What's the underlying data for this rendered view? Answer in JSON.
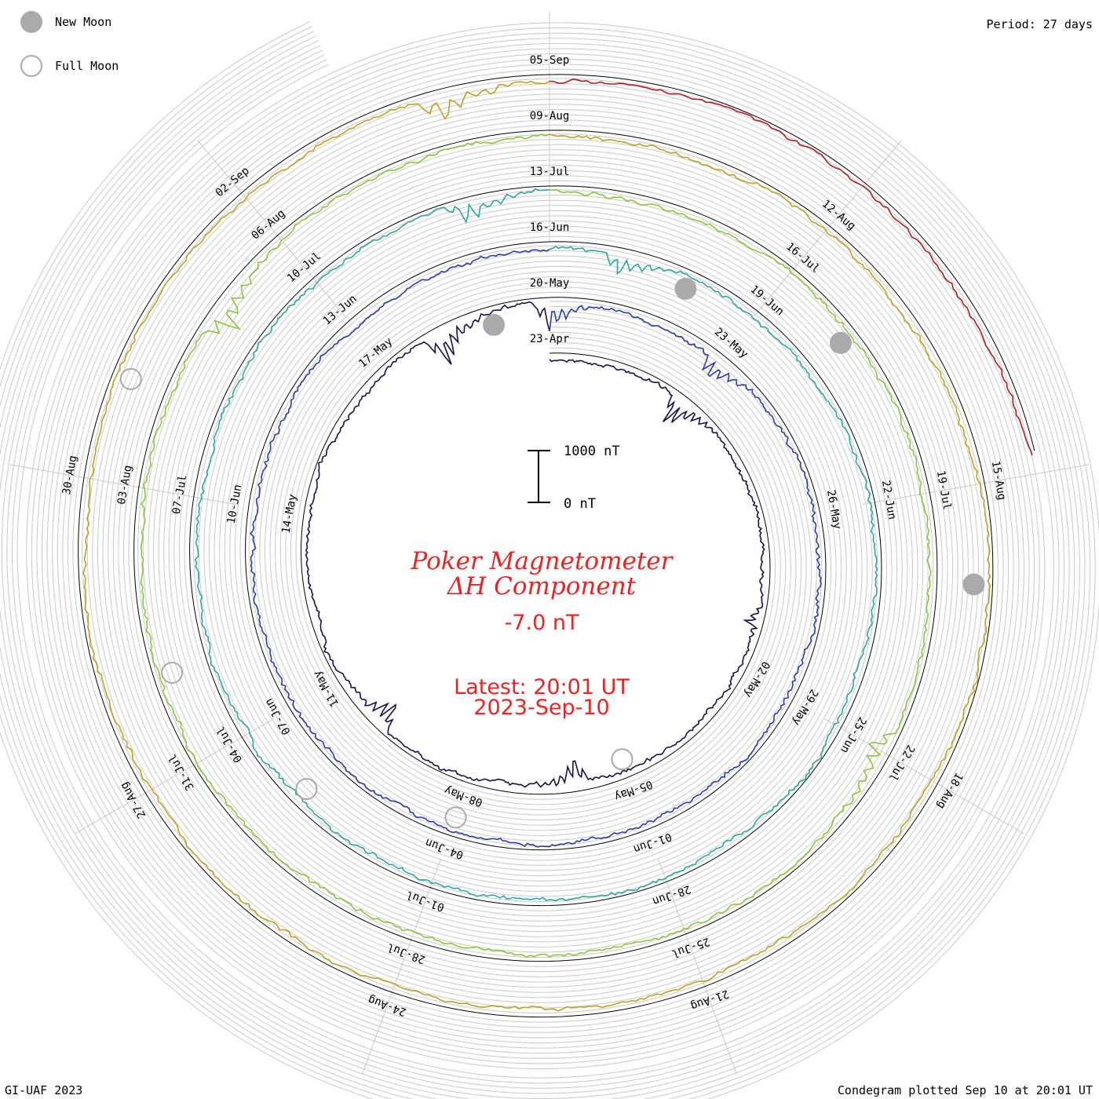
{
  "header": {
    "period_label": "Period: 27 days"
  },
  "legend": {
    "items": [
      {
        "kind": "new",
        "label": "New Moon",
        "color": "#aaaaaa"
      },
      {
        "kind": "full",
        "label": "Full Moon",
        "color": "#aaaaaa"
      }
    ]
  },
  "footer": {
    "credit": "GI-UAF 2023",
    "plotted": "Condegram plotted Sep 10 at 20:01 UT"
  },
  "center": {
    "title_line1": "Poker Magnetometer",
    "title_line2": "ΔH Component",
    "current_value": "-7.0 nT",
    "latest_line1": "Latest: 20:01 UT",
    "latest_line2": "2023-Sep-10"
  },
  "scale_bar": {
    "top_label": "1000 nT",
    "bottom_label": "0 nT",
    "top_value": 1000,
    "bottom_value": 0
  },
  "chart_data": {
    "type": "line",
    "subtype": "condegram spiral",
    "period_days": 27,
    "start_date": "2023-04-23",
    "end_date": "2023-09-10",
    "units": "nT",
    "turns": [
      {
        "start": "23-Apr",
        "color": "#1a0f4a",
        "baseline": 0,
        "labels": [
          "23-Apr",
          "02-May",
          "05-May",
          "08-May",
          "11-May",
          "14-May",
          "17-May",
          "20-May",
          "23-May",
          "26-May"
        ]
      },
      {
        "start": "20-May",
        "color": "#2b3aa8",
        "baseline": 0,
        "labels": [
          "29-May",
          "01-Jun",
          "04-Jun",
          "07-Jun",
          "10-Jun",
          "13-Jun",
          "16-Jun",
          "19-Jun",
          "22-Jun"
        ]
      },
      {
        "start": "16-Jun",
        "color": "#2aa8a0",
        "baseline": 0,
        "labels": [
          "25-Jun",
          "28-Jun",
          "01-Jul",
          "04-Jul",
          "07-Jul",
          "10-Jul",
          "13-Jul",
          "16-Jul",
          "19-Jul"
        ]
      },
      {
        "start": "13-Jul",
        "color": "#8cc43a",
        "baseline": 0,
        "labels": [
          "22-Jul",
          "25-Jul",
          "28-Jul",
          "31-Jul",
          "03-Aug",
          "06-Aug",
          "09-Aug",
          "12-Aug",
          "15-Aug"
        ]
      },
      {
        "start": "09-Aug",
        "color": "#c0a020",
        "baseline": 0,
        "labels": [
          "18-Aug",
          "21-Aug",
          "24-Aug",
          "27-Aug",
          "30-Aug",
          "02-Sep",
          "05-Sep"
        ]
      },
      {
        "start": "05-Sep",
        "color": "#b81818",
        "baseline": 0,
        "labels": []
      }
    ],
    "events": [
      {
        "date": "26-Apr",
        "value": 650
      },
      {
        "date": "01-May",
        "value": 300
      },
      {
        "date": "06-May",
        "value": 520
      },
      {
        "date": "10-May",
        "value": 560
      },
      {
        "date": "18-May",
        "value": 700
      },
      {
        "date": "20-May",
        "value": 560
      },
      {
        "date": "23-May",
        "value": 480
      },
      {
        "date": "17-Jun",
        "value": 420
      },
      {
        "date": "12-Jul",
        "value": 450
      },
      {
        "date": "22-Jul",
        "value": 420
      },
      {
        "date": "05-Aug",
        "value": 560
      },
      {
        "date": "04-Sep",
        "value": 500
      }
    ],
    "moon_phases": [
      {
        "type": "full",
        "date": "05-May"
      },
      {
        "type": "new",
        "date": "19-May"
      },
      {
        "type": "full",
        "date": "04-Jun"
      },
      {
        "type": "new",
        "date": "18-Jun"
      },
      {
        "type": "full",
        "date": "03-Jul"
      },
      {
        "type": "new",
        "date": "17-Jul"
      },
      {
        "type": "full",
        "date": "01-Aug"
      },
      {
        "type": "new",
        "date": "16-Aug"
      },
      {
        "type": "full",
        "date": "31-Aug"
      }
    ],
    "grid": true
  }
}
